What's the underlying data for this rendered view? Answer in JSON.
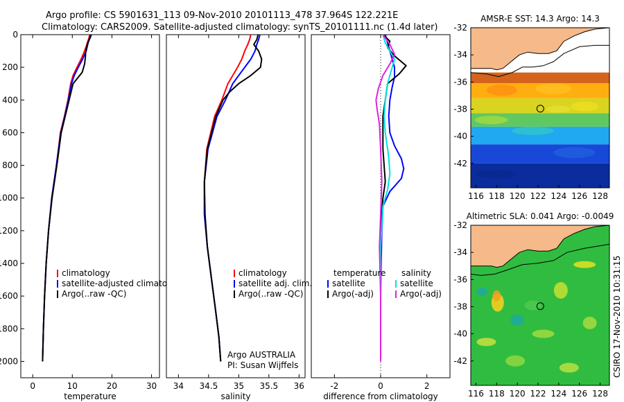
{
  "header": {
    "line1": "Argo profile: CS 5901631_113 09-Nov-2010 20101113_478 37.964S 122.221E",
    "line2": "Climatology: CARS2009. Satellite-adjusted climatology: synTS_20101111.nc (1.4d later)"
  },
  "side_label": "CSIRO 17-Nov-2010 10:31:15",
  "colors": {
    "climatology": "#ff0000",
    "satellite": "#0000ff",
    "argo": "#000000",
    "salinity_satellite": "#00e0e0",
    "salinity_argo": "#e020e0",
    "land": "#f5b98a"
  },
  "chart_data": [
    {
      "id": "temperature",
      "type": "line",
      "xlabel": "temperature",
      "ylabel": "",
      "xlim": [
        -3,
        32
      ],
      "ylim": [
        0,
        2100
      ],
      "y_reversed": true,
      "xticks": [
        0,
        10,
        20,
        30
      ],
      "yticks": [
        0,
        200,
        400,
        600,
        800,
        1000,
        1200,
        1400,
        1600,
        1800,
        2000
      ],
      "legend": {
        "placement": "lower-middle",
        "entries": [
          {
            "label": "climatology",
            "color": "#ff0000"
          },
          {
            "label": "satellite-adjusted climatology",
            "color": "#0000ff"
          },
          {
            "label": "Argo(..raw -QC)",
            "color": "#000000"
          }
        ]
      },
      "series": [
        {
          "name": "climatology",
          "color": "#ff0000",
          "x": [
            14.4,
            14.2,
            13.8,
            13.1,
            12.2,
            11.2,
            10.2,
            9.6,
            8.9,
            8.0,
            7.0,
            6.0,
            4.8,
            4.0,
            3.4,
            3.0,
            2.7,
            2.5
          ],
          "y": [
            0,
            20,
            50,
            100,
            150,
            200,
            250,
            300,
            400,
            500,
            600,
            800,
            1000,
            1200,
            1400,
            1600,
            1800,
            2000
          ]
        },
        {
          "name": "satellite-adjusted climatology",
          "color": "#0000ff",
          "x": [
            14.6,
            14.4,
            14.0,
            13.5,
            12.6,
            11.5,
            10.5,
            9.8,
            9.0,
            8.1,
            7.1,
            6.0,
            4.8,
            4.0,
            3.4,
            3.0,
            2.7,
            2.5
          ],
          "y": [
            0,
            20,
            50,
            100,
            150,
            200,
            250,
            300,
            400,
            500,
            600,
            800,
            1000,
            1200,
            1400,
            1600,
            1800,
            2000
          ]
        },
        {
          "name": "Argo(..raw -QC)",
          "color": "#000000",
          "x": [
            14.8,
            14.5,
            13.9,
            13.4,
            13.3,
            13.1,
            12.5,
            10.2,
            9.2,
            8.2,
            7.2,
            6.1,
            4.9,
            4.0,
            3.4,
            3.0,
            2.7,
            2.5
          ],
          "y": [
            0,
            20,
            50,
            100,
            140,
            180,
            230,
            300,
            400,
            500,
            600,
            800,
            1000,
            1200,
            1400,
            1600,
            1800,
            2000
          ]
        }
      ]
    },
    {
      "id": "salinity",
      "type": "line",
      "xlabel": "salinity",
      "ylabel": "",
      "xlim": [
        33.8,
        36.1
      ],
      "ylim": [
        0,
        2100
      ],
      "y_reversed": true,
      "xticks": [
        34,
        34.5,
        35,
        35.5,
        36
      ],
      "xticklabels": [
        "34",
        "34.5",
        "35",
        "35.5",
        "36"
      ],
      "legend": {
        "placement": "lower-right",
        "entries": [
          {
            "label": "climatology",
            "color": "#ff0000"
          },
          {
            "label": "satellite adj. clim.",
            "color": "#0000ff"
          },
          {
            "label": "Argo(..raw -QC)",
            "color": "#000000"
          }
        ]
      },
      "annotation": [
        "Argo AUSTRALIA",
        "PI: Susan Wijffels"
      ],
      "series": [
        {
          "name": "climatology",
          "color": "#ff0000",
          "x": [
            35.2,
            35.18,
            35.15,
            35.1,
            35.05,
            34.98,
            34.9,
            34.82,
            34.72,
            34.6,
            34.47,
            34.43,
            34.43,
            34.48,
            34.55,
            34.62,
            34.67,
            34.7
          ],
          "y": [
            0,
            30,
            60,
            100,
            150,
            200,
            250,
            300,
            400,
            500,
            700,
            900,
            1100,
            1300,
            1500,
            1700,
            1850,
            2000
          ]
        },
        {
          "name": "satellite adj. clim.",
          "color": "#0000ff",
          "x": [
            35.35,
            35.33,
            35.3,
            35.27,
            35.2,
            35.1,
            35.0,
            34.9,
            34.78,
            34.64,
            34.49,
            34.43,
            34.43,
            34.48,
            34.55,
            34.62,
            34.67,
            34.7
          ],
          "y": [
            0,
            30,
            60,
            100,
            150,
            200,
            250,
            300,
            400,
            500,
            700,
            900,
            1100,
            1300,
            1500,
            1700,
            1850,
            2000
          ]
        },
        {
          "name": "Argo(..raw -QC)",
          "color": "#000000",
          "x": [
            35.32,
            35.3,
            35.25,
            35.33,
            35.38,
            35.36,
            35.2,
            35.0,
            34.85,
            34.74,
            34.62,
            34.48,
            34.43,
            34.44,
            34.48,
            34.55,
            34.62,
            34.67,
            34.7
          ],
          "y": [
            0,
            30,
            60,
            100,
            150,
            200,
            250,
            300,
            350,
            400,
            500,
            700,
            900,
            1100,
            1300,
            1500,
            1700,
            1850,
            2000
          ]
        }
      ]
    },
    {
      "id": "difference",
      "type": "line",
      "xlabel": "difference from climatology",
      "ylabel": "",
      "xlim": [
        -3,
        3
      ],
      "ylim": [
        0,
        2100
      ],
      "y_reversed": true,
      "xticks": [
        -2,
        0,
        2
      ],
      "zero_line": "dotted",
      "legend": {
        "placement": "lower-middle",
        "columns": [
          {
            "header": "temperature",
            "entries": [
              {
                "label": "satellite",
                "color": "#0000ff"
              },
              {
                "label": "Argo(-adj)",
                "color": "#000000"
              }
            ]
          },
          {
            "header": "salinity",
            "entries": [
              {
                "label": "satellite",
                "color": "#00e0e0"
              },
              {
                "label": "Argo(-adj)",
                "color": "#e020e0"
              }
            ]
          }
        ]
      },
      "series": [
        {
          "name": "temperature satellite",
          "color": "#0000ff",
          "x": [
            0.2,
            0.3,
            0.4,
            0.5,
            0.6,
            0.6,
            0.5,
            0.4,
            0.35,
            0.4,
            0.6,
            0.9,
            1.0,
            0.9,
            0.4,
            0.1,
            0.05,
            0.02,
            0.0,
            0.0,
            0.0
          ],
          "y": [
            0,
            50,
            100,
            150,
            200,
            260,
            320,
            400,
            500,
            600,
            680,
            760,
            820,
            880,
            960,
            1050,
            1200,
            1400,
            1600,
            1800,
            2000
          ]
        },
        {
          "name": "temperature Argo(-adj)",
          "color": "#000000",
          "x": [
            0.1,
            0.4,
            0.3,
            0.6,
            1.1,
            0.8,
            0.3,
            0.2,
            0.1,
            0.1,
            0.15,
            0.2,
            0.1,
            0.0,
            0.0,
            0.0
          ],
          "y": [
            0,
            40,
            80,
            130,
            190,
            240,
            300,
            400,
            500,
            700,
            800,
            900,
            1000,
            1200,
            1500,
            2000
          ]
        },
        {
          "name": "salinity satellite",
          "color": "#00e0e0",
          "x": [
            0.1,
            0.2,
            0.4,
            0.6,
            0.5,
            0.3,
            0.2,
            0.15,
            0.2,
            0.35,
            0.4,
            0.3,
            0.1,
            0.0,
            0.0,
            0.0
          ],
          "y": [
            0,
            50,
            100,
            150,
            200,
            300,
            400,
            500,
            600,
            750,
            850,
            950,
            1050,
            1300,
            1600,
            2000
          ]
        },
        {
          "name": "salinity Argo(-adj)",
          "color": "#e020e0",
          "x": [
            0.1,
            0.4,
            0.6,
            0.4,
            0.1,
            -0.1,
            -0.2,
            -0.15,
            -0.05,
            0.0,
            0.05,
            0.0,
            -0.05,
            0.0,
            0.0
          ],
          "y": [
            0,
            60,
            120,
            180,
            250,
            330,
            400,
            460,
            550,
            700,
            900,
            1100,
            1300,
            1600,
            2000
          ]
        }
      ]
    },
    {
      "id": "sst-map",
      "type": "heatmap",
      "title": "AMSR-E SST: 14.3 Argo: 14.3",
      "xlim": [
        115.5,
        128.9
      ],
      "ylim": [
        -43.8,
        -32.0
      ],
      "xticks": [
        116,
        118,
        120,
        122,
        124,
        126,
        128
      ],
      "yticks": [
        -32,
        -34,
        -36,
        -38,
        -40,
        -42
      ],
      "marker": {
        "lon": 122.221,
        "lat": -37.964
      },
      "colorbands": [
        {
          "lat_top": -35.3,
          "lat_bottom": -36.1,
          "color": "#d4641c"
        },
        {
          "lat_top": -36.1,
          "lat_bottom": -37.2,
          "color": "#ffae10"
        },
        {
          "lat_top": -37.2,
          "lat_bottom": -38.3,
          "color": "#d8d420"
        },
        {
          "lat_top": -38.3,
          "lat_bottom": -39.3,
          "color": "#60c860"
        },
        {
          "lat_top": -39.3,
          "lat_bottom": -40.6,
          "color": "#20a8f0"
        },
        {
          "lat_top": -40.6,
          "lat_bottom": -42.0,
          "color": "#1848d8"
        },
        {
          "lat_top": -42.0,
          "lat_bottom": -43.8,
          "color": "#0a2c9c"
        }
      ]
    },
    {
      "id": "sla-map",
      "type": "heatmap",
      "title": "Altimetric SLA: 0.041 Argo: -0.0049",
      "xlim": [
        115.5,
        128.9
      ],
      "ylim": [
        -43.8,
        -32.0
      ],
      "xticks": [
        116,
        118,
        120,
        122,
        124,
        126,
        128
      ],
      "yticks": [
        -32,
        -34,
        -36,
        -38,
        -40,
        -42
      ],
      "marker": {
        "lon": 122.221,
        "lat": -37.964
      },
      "colorbands": [
        {
          "lat_top": -32.0,
          "lat_bottom": -43.8,
          "color": "#30bc40"
        }
      ]
    }
  ]
}
